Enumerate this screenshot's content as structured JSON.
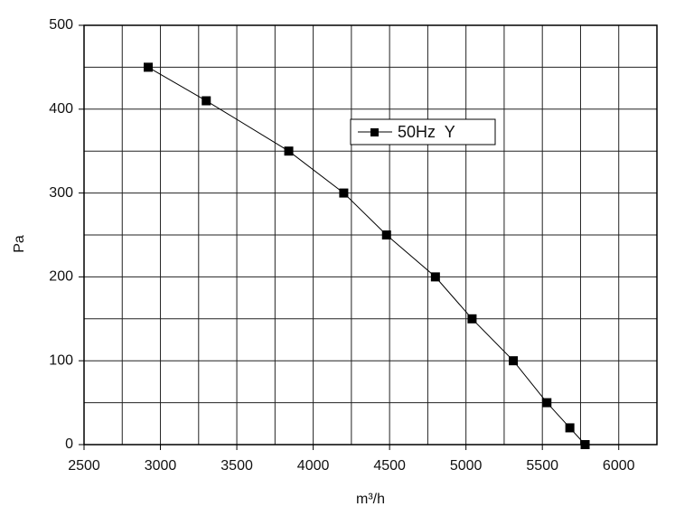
{
  "chart_data": {
    "type": "line",
    "x_label": "m³/h",
    "y_label": "Pa",
    "xlim": [
      2500,
      6250
    ],
    "ylim": [
      0,
      500
    ],
    "xticks": [
      2500,
      3000,
      3500,
      4000,
      4500,
      5000,
      5500,
      6000
    ],
    "yticks": [
      0,
      100,
      200,
      300,
      400,
      500
    ],
    "xgrid": [
      2500,
      2750,
      3000,
      3250,
      3500,
      3750,
      4000,
      4250,
      4500,
      4750,
      5000,
      5250,
      5500,
      5750,
      6000,
      6250
    ],
    "ygrid": [
      0,
      50,
      100,
      150,
      200,
      250,
      300,
      350,
      400,
      450,
      500
    ],
    "grid": true,
    "legend": "upper-center",
    "series": [
      {
        "name": "50Hz  Y",
        "color": "#000000",
        "x": [
          2920,
          3300,
          3840,
          4200,
          4480,
          4800,
          5040,
          5310,
          5530,
          5680,
          5780
        ],
        "values": [
          450,
          410,
          350,
          300,
          250,
          200,
          150,
          100,
          50,
          20,
          0
        ]
      }
    ]
  }
}
